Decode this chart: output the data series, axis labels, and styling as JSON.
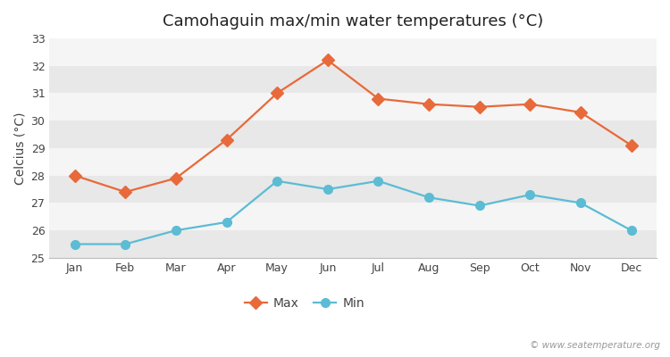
{
  "title": "Camohaguin max/min water temperatures (°C)",
  "ylabel": "Celcius (°C)",
  "months": [
    "Jan",
    "Feb",
    "Mar",
    "Apr",
    "May",
    "Jun",
    "Jul",
    "Aug",
    "Sep",
    "Oct",
    "Nov",
    "Dec"
  ],
  "max_values": [
    28.0,
    27.4,
    27.9,
    29.3,
    31.0,
    32.2,
    30.8,
    30.6,
    30.5,
    30.6,
    30.3,
    29.1
  ],
  "min_values": [
    25.5,
    25.5,
    26.0,
    26.3,
    27.8,
    27.5,
    27.8,
    27.2,
    26.9,
    27.3,
    27.0,
    26.0
  ],
  "max_color": "#e8693a",
  "min_color": "#5bbcd4",
  "fig_bg_color": "#ffffff",
  "band_colors": [
    "#e8e8e8",
    "#f5f5f5"
  ],
  "ylim": [
    25,
    33
  ],
  "yticks": [
    25,
    26,
    27,
    28,
    29,
    30,
    31,
    32,
    33
  ],
  "watermark": "© www.seatemperature.org",
  "legend_labels": [
    "Max",
    "Min"
  ],
  "title_fontsize": 13,
  "label_fontsize": 10,
  "tick_fontsize": 9,
  "linewidth": 1.6,
  "markersize": 7
}
